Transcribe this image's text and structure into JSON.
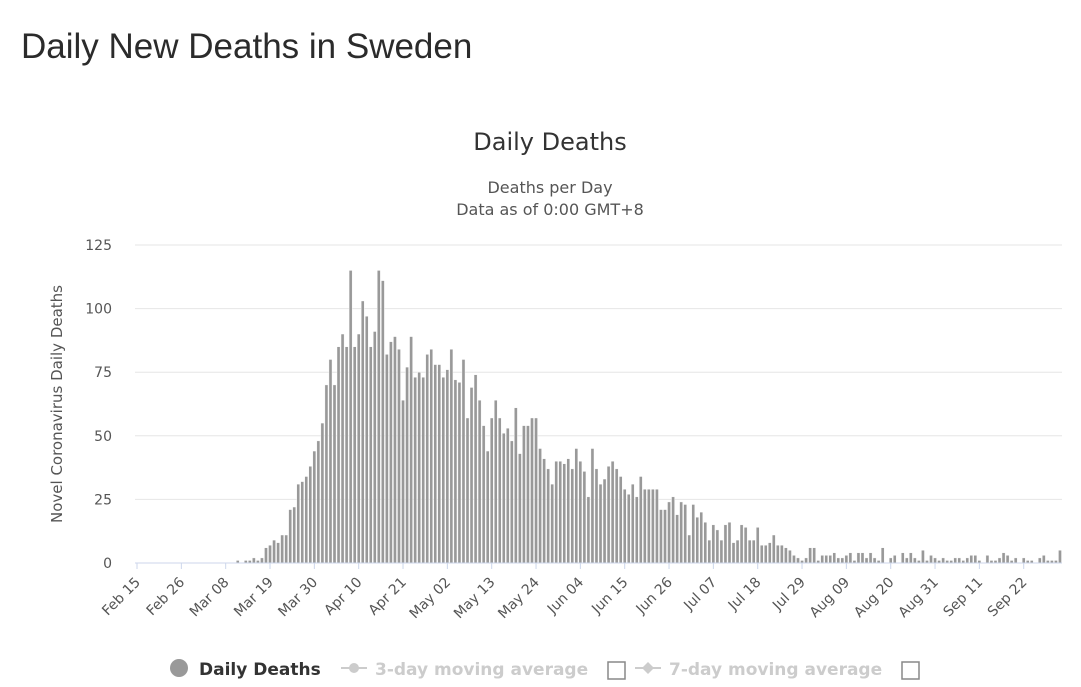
{
  "page": {
    "title": "Daily New Deaths in Sweden"
  },
  "colors": {
    "bar": "#999999",
    "legend_active": "#333333",
    "legend_inactive": "#cccccc",
    "axis": "#ccd6eb",
    "grid": "#e6e6e6"
  },
  "legend": [
    {
      "label": "Daily Deaths",
      "active": true,
      "icon": "circle-marker-icon"
    },
    {
      "label": "3-day moving average",
      "active": false,
      "icon": "line-marker-icon",
      "checkbox": true
    },
    {
      "label": "7-day moving average",
      "active": false,
      "icon": "diamond-line-marker-icon",
      "checkbox": true
    }
  ],
  "chart_data": {
    "type": "bar",
    "title": "Daily Deaths",
    "subtitle": [
      "Deaths per Day",
      "Data as of 0:00 GMT+8"
    ],
    "ylabel": "Novel Coronavirus Daily Deaths",
    "xlabel": "",
    "ylim": [
      0,
      125
    ],
    "yticks": [
      0,
      25,
      50,
      75,
      100,
      125
    ],
    "x_start": "2020-02-15",
    "xticks": [
      "Feb 15",
      "Feb 26",
      "Mar 08",
      "Mar 19",
      "Mar 30",
      "Apr 10",
      "Apr 21",
      "May 02",
      "May 13",
      "May 24",
      "Jun 04",
      "Jun 15",
      "Jun 26",
      "Jul 07",
      "Jul 18",
      "Jul 29",
      "Aug 09",
      "Aug 20",
      "Aug 31",
      "Sep 11",
      "Sep 22"
    ],
    "grid": true,
    "legend_position": "bottom",
    "series": [
      {
        "name": "Daily Deaths",
        "values": [
          0,
          0,
          0,
          0,
          0,
          0,
          0,
          0,
          0,
          0,
          0,
          0,
          0,
          0,
          0,
          0,
          0,
          0,
          0,
          0,
          0,
          0,
          0,
          0,
          0,
          1,
          0,
          1,
          1,
          2,
          1,
          2,
          6,
          7,
          9,
          8,
          11,
          11,
          21,
          22,
          31,
          32,
          34,
          38,
          44,
          48,
          55,
          70,
          80,
          70,
          85,
          90,
          85,
          115,
          85,
          90,
          103,
          97,
          85,
          91,
          115,
          111,
          82,
          87,
          89,
          84,
          64,
          77,
          89,
          73,
          75,
          73,
          82,
          84,
          78,
          78,
          73,
          76,
          84,
          72,
          71,
          80,
          57,
          69,
          74,
          64,
          54,
          44,
          57,
          64,
          57,
          51,
          53,
          48,
          61,
          43,
          54,
          54,
          57,
          57,
          45,
          41,
          37,
          31,
          40,
          40,
          39,
          41,
          37,
          45,
          40,
          36,
          26,
          45,
          37,
          31,
          33,
          38,
          40,
          37,
          34,
          29,
          27,
          31,
          26,
          34,
          29,
          29,
          29,
          29,
          21,
          21,
          24,
          26,
          19,
          24,
          23,
          11,
          23,
          18,
          20,
          16,
          9,
          15,
          13,
          9,
          15,
          16,
          8,
          9,
          15,
          14,
          9,
          9,
          14,
          7,
          7,
          8,
          11,
          7,
          7,
          6,
          5,
          3,
          2,
          1,
          2,
          6,
          6,
          1,
          3,
          3,
          3,
          4,
          2,
          2,
          3,
          4,
          1,
          4,
          4,
          2,
          4,
          2,
          1,
          6,
          0,
          2,
          3,
          0,
          4,
          2,
          4,
          2,
          1,
          5,
          1,
          3,
          2,
          1,
          2,
          1,
          1,
          2,
          2,
          1,
          2,
          3,
          3,
          1,
          0,
          3,
          1,
          1,
          2,
          4,
          3,
          1,
          2,
          0,
          2,
          1,
          1,
          0,
          2,
          3,
          1,
          1,
          1,
          5
        ]
      }
    ]
  }
}
